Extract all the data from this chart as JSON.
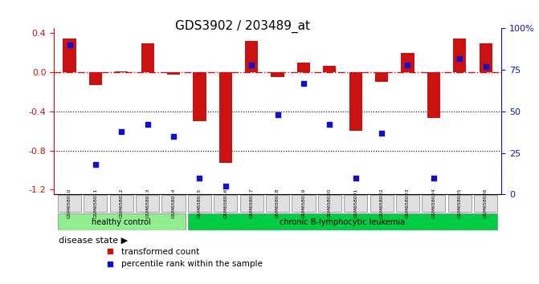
{
  "title": "GDS3902 / 203489_at",
  "samples": [
    "GSM658010",
    "GSM658011",
    "GSM658012",
    "GSM658013",
    "GSM658014",
    "GSM658015",
    "GSM658016",
    "GSM658017",
    "GSM658018",
    "GSM658019",
    "GSM658020",
    "GSM658021",
    "GSM658022",
    "GSM658023",
    "GSM658024",
    "GSM658025",
    "GSM658026"
  ],
  "red_bars": [
    0.35,
    -0.13,
    0.01,
    0.3,
    -0.02,
    -0.5,
    -0.93,
    0.32,
    -0.05,
    0.1,
    0.07,
    -0.6,
    -0.1,
    0.2,
    -0.47,
    0.35,
    0.3
  ],
  "blue_dots": [
    90,
    18,
    38,
    42,
    35,
    10,
    5,
    78,
    48,
    67,
    42,
    10,
    37,
    78,
    10,
    82,
    77
  ],
  "disease_groups": [
    {
      "label": "healthy control",
      "start": 0,
      "end": 4,
      "color": "#90EE90"
    },
    {
      "label": "chronic B-lymphocytic leukemia",
      "start": 5,
      "end": 16,
      "color": "#00CC44"
    }
  ],
  "ylim_left": [
    -1.25,
    0.45
  ],
  "ylim_right": [
    0,
    100
  ],
  "yticks_left": [
    0.4,
    0.0,
    -0.4,
    -0.8,
    -1.2
  ],
  "yticks_right": [
    0,
    25,
    50,
    75,
    100
  ],
  "ytick_labels_right": [
    "0",
    "25",
    "50",
    "75",
    "100%"
  ],
  "hline_y": 0,
  "dotted_lines": [
    -0.4,
    -0.8
  ],
  "bar_color": "#CC1111",
  "dot_color": "#1111CC",
  "background_color": "#ffffff",
  "disease_label": "disease state",
  "legend_red": "transformed count",
  "legend_blue": "percentile rank within the sample"
}
